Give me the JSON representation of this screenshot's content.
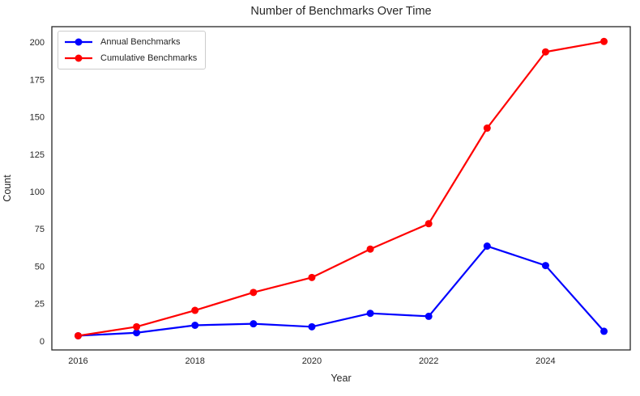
{
  "chart_data": {
    "type": "line",
    "title": "Number of Benchmarks Over Time",
    "xlabel": "Year",
    "ylabel": "Count",
    "x": [
      2016,
      2017,
      2018,
      2019,
      2020,
      2021,
      2022,
      2023,
      2024,
      2025
    ],
    "series": [
      {
        "name": "Annual Benchmarks",
        "color": "#0000ff",
        "values": [
          4,
          6,
          11,
          12,
          10,
          19,
          17,
          64,
          51,
          7
        ]
      },
      {
        "name": "Cumulative Benchmarks",
        "color": "#ff0000",
        "values": [
          4,
          10,
          21,
          33,
          43,
          62,
          79,
          143,
          194,
          201
        ]
      }
    ],
    "xticks": [
      2016,
      2018,
      2020,
      2022,
      2024
    ],
    "yticks": [
      0,
      25,
      50,
      75,
      100,
      125,
      150,
      175,
      200
    ],
    "xlim": [
      2015.55,
      2025.45
    ],
    "ylim": [
      -5.5,
      210.9
    ],
    "grid": false,
    "legend_position": "upper left",
    "text_color": "#262626",
    "spine_color": "#262626",
    "background": "#ffffff"
  }
}
